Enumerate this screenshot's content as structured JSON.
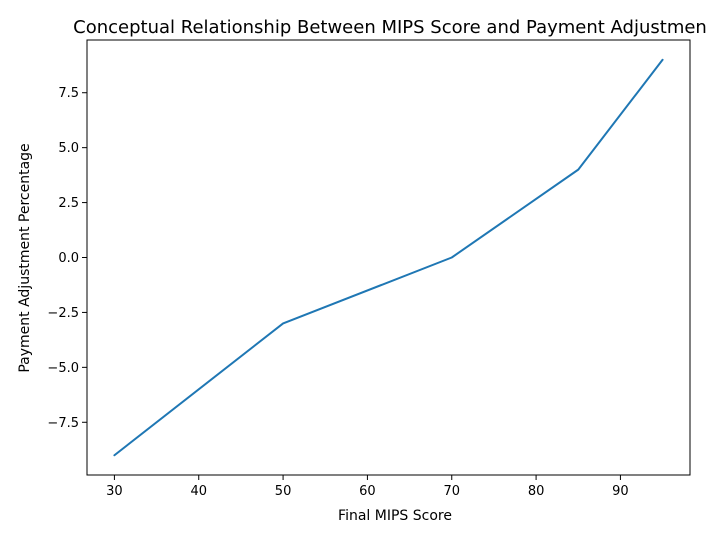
{
  "chart_data": {
    "type": "line",
    "title": "Conceptual Relationship Between MIPS Score and Payment Adjustmen",
    "xlabel": "Final MIPS Score",
    "ylabel": "Payment Adjustment Percentage",
    "xlim": [
      26.75,
      98.25
    ],
    "ylim": [
      -9.9,
      9.9
    ],
    "x_ticks": [
      30,
      40,
      50,
      60,
      70,
      80,
      90
    ],
    "x_tick_labels": [
      "30",
      "40",
      "50",
      "60",
      "70",
      "80",
      "90"
    ],
    "y_ticks": [
      -7.5,
      -5.0,
      -2.5,
      0.0,
      2.5,
      5.0,
      7.5
    ],
    "y_tick_labels": [
      "−7.5",
      "−5.0",
      "−2.5",
      "0.0",
      "2.5",
      "5.0",
      "7.5"
    ],
    "grid": false,
    "series": [
      {
        "color": "#1f77b4",
        "x": [
          30,
          50,
          70,
          85,
          95
        ],
        "y": [
          -9,
          -3,
          0,
          4,
          9
        ]
      }
    ]
  }
}
